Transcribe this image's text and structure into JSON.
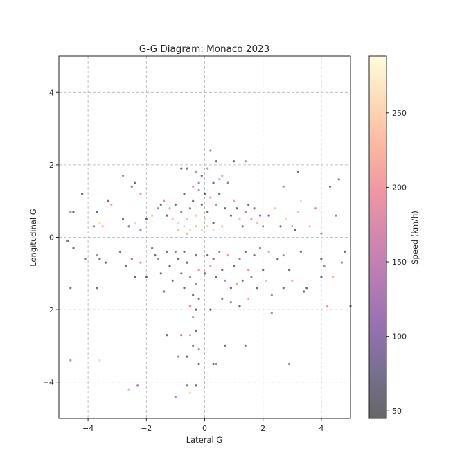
{
  "chart_data": {
    "type": "scatter",
    "title": "G-G Diagram: Monaco 2023",
    "xlabel": "Lateral G",
    "ylabel": "Longitudinal G",
    "xlim": [
      -5,
      5
    ],
    "ylim": [
      -5,
      5
    ],
    "xticks": [
      -4,
      -2,
      0,
      2,
      4
    ],
    "yticks": [
      -4,
      -2,
      0,
      2,
      4
    ],
    "xtick_labels": [
      "−4",
      "−2",
      "0",
      "2",
      "4"
    ],
    "ytick_labels": [
      "−4",
      "−2",
      "0",
      "2",
      "4"
    ],
    "grid": true,
    "colormap": "magma",
    "marker_alpha": 0.6,
    "colorbar": {
      "label": "Speed (km/h)",
      "range": [
        45,
        288
      ],
      "ticks": [
        50,
        100,
        150,
        200,
        250
      ],
      "tick_labels": [
        "50",
        "100",
        "150",
        "200",
        "250"
      ]
    },
    "points": [
      [
        -4.6,
        0.7,
        140
      ],
      [
        -4.5,
        0.7,
        60
      ],
      [
        -4.2,
        1.2,
        50
      ],
      [
        -3.8,
        0.3,
        80
      ],
      [
        -3.7,
        0.7,
        60
      ],
      [
        -3.6,
        0.4,
        250
      ],
      [
        -3.5,
        0.3,
        220
      ],
      [
        -3.3,
        1.0,
        60
      ],
      [
        -3.2,
        0.9,
        200
      ],
      [
        -4.7,
        -0.1,
        90
      ],
      [
        -4.5,
        -0.3,
        60
      ],
      [
        -4.1,
        -0.6,
        80
      ],
      [
        -3.7,
        -0.5,
        130
      ],
      [
        -3.6,
        -0.6,
        70
      ],
      [
        -3.4,
        -0.7,
        60
      ],
      [
        -3.7,
        -1.4,
        60
      ],
      [
        -4.6,
        -1.4,
        90
      ],
      [
        -4.6,
        -3.4,
        170
      ],
      [
        -3.6,
        -3.4,
        250
      ],
      [
        -2.6,
        -4.2,
        220
      ],
      [
        -2.3,
        -4.1,
        120
      ],
      [
        -2.8,
        0.5,
        60
      ],
      [
        -2.6,
        0.3,
        90
      ],
      [
        -2.4,
        0.4,
        250
      ],
      [
        -2.2,
        0.2,
        130
      ],
      [
        -2.0,
        0.5,
        60
      ],
      [
        -1.8,
        0.6,
        230
      ],
      [
        -1.6,
        0.8,
        140
      ],
      [
        -1.5,
        0.9,
        60
      ],
      [
        -1.4,
        1.0,
        180
      ],
      [
        -2.8,
        1.7,
        140
      ],
      [
        -2.4,
        1.5,
        60
      ],
      [
        -2.2,
        1.2,
        200
      ],
      [
        -2.5,
        1.4,
        90
      ],
      [
        -2.9,
        -0.4,
        70
      ],
      [
        -2.7,
        -0.8,
        60
      ],
      [
        -2.5,
        -0.6,
        130
      ],
      [
        -2.4,
        -1.1,
        50
      ],
      [
        -2.2,
        -0.7,
        180
      ],
      [
        -2.0,
        -1.1,
        60
      ],
      [
        -1.8,
        -0.3,
        100
      ],
      [
        -1.7,
        -0.5,
        60
      ],
      [
        -1.6,
        -0.6,
        140
      ],
      [
        -1.5,
        -1.0,
        60
      ],
      [
        -1.4,
        -1.5,
        90
      ],
      [
        -1.3,
        -0.4,
        70
      ],
      [
        -1.2,
        -0.8,
        50
      ],
      [
        -1.1,
        -1.2,
        60
      ],
      [
        -1.0,
        -0.4,
        120
      ],
      [
        -0.9,
        -0.6,
        60
      ],
      [
        -0.8,
        -1.0,
        80
      ],
      [
        -0.7,
        -0.4,
        60
      ],
      [
        -0.6,
        -0.7,
        50
      ],
      [
        -0.5,
        -1.1,
        140
      ],
      [
        -0.4,
        -1.6,
        60
      ],
      [
        -0.3,
        -0.5,
        70
      ],
      [
        -0.2,
        -0.9,
        180
      ],
      [
        -1.3,
        0.6,
        60
      ],
      [
        -1.2,
        0.8,
        200
      ],
      [
        -1.1,
        0.5,
        240
      ],
      [
        -1.0,
        0.9,
        60
      ],
      [
        -0.9,
        0.4,
        250
      ],
      [
        -0.8,
        0.7,
        130
      ],
      [
        -0.7,
        1.2,
        60
      ],
      [
        -0.6,
        0.5,
        230
      ],
      [
        -0.5,
        0.8,
        90
      ],
      [
        -0.4,
        1.0,
        60
      ],
      [
        -0.3,
        0.6,
        240
      ],
      [
        -0.2,
        1.3,
        140
      ],
      [
        -0.1,
        0.9,
        60
      ],
      [
        0.0,
        0.5,
        250
      ],
      [
        0.1,
        0.7,
        60
      ],
      [
        0.2,
        1.1,
        200
      ],
      [
        0.3,
        0.4,
        60
      ],
      [
        0.4,
        0.9,
        150
      ],
      [
        0.5,
        1.2,
        60
      ],
      [
        0.6,
        0.3,
        230
      ],
      [
        0.7,
        0.8,
        60
      ],
      [
        0.8,
        1.5,
        120
      ],
      [
        0.9,
        0.6,
        60
      ],
      [
        1.0,
        1.0,
        200
      ],
      [
        -0.9,
        0.2,
        240
      ],
      [
        -0.7,
        0.3,
        250
      ],
      [
        -0.5,
        0.2,
        260
      ],
      [
        -0.3,
        0.3,
        230
      ],
      [
        -0.1,
        0.2,
        250
      ],
      [
        0.1,
        0.3,
        240
      ],
      [
        0.3,
        0.2,
        260
      ],
      [
        -0.6,
        0.1,
        220
      ],
      [
        -0.8,
        1.9,
        60
      ],
      [
        -0.6,
        1.9,
        90
      ],
      [
        -0.3,
        1.8,
        150
      ],
      [
        -0.1,
        1.7,
        60
      ],
      [
        0.1,
        1.9,
        160
      ],
      [
        0.2,
        2.4,
        140
      ],
      [
        0.4,
        2.1,
        60
      ],
      [
        0.6,
        1.7,
        200
      ],
      [
        1.0,
        2.1,
        60
      ],
      [
        1.4,
        2.1,
        150
      ],
      [
        0.3,
        1.5,
        60
      ],
      [
        0.5,
        1.6,
        200
      ],
      [
        -0.2,
        1.5,
        140
      ],
      [
        -0.4,
        1.4,
        180
      ],
      [
        0.0,
        1.2,
        60
      ],
      [
        1.1,
        0.8,
        60
      ],
      [
        1.2,
        0.5,
        230
      ],
      [
        1.3,
        0.3,
        60
      ],
      [
        1.4,
        0.7,
        140
      ],
      [
        1.5,
        0.9,
        60
      ],
      [
        1.6,
        0.5,
        200
      ],
      [
        1.7,
        0.8,
        60
      ],
      [
        1.8,
        0.4,
        230
      ],
      [
        1.9,
        0.6,
        90
      ],
      [
        2.0,
        0.3,
        130
      ],
      [
        2.2,
        0.6,
        60
      ],
      [
        2.4,
        0.8,
        230
      ],
      [
        2.6,
        0.3,
        60
      ],
      [
        2.8,
        0.5,
        250
      ],
      [
        3.0,
        0.3,
        200
      ],
      [
        3.2,
        0.7,
        240
      ],
      [
        3.1,
        0.2,
        60
      ],
      [
        2.7,
        1.4,
        140
      ],
      [
        3.2,
        1.8,
        60
      ],
      [
        0.1,
        -0.5,
        60
      ],
      [
        0.3,
        -0.6,
        90
      ],
      [
        0.5,
        -0.4,
        140
      ],
      [
        0.6,
        -0.9,
        60
      ],
      [
        0.8,
        -0.5,
        200
      ],
      [
        1.0,
        -0.8,
        60
      ],
      [
        1.2,
        -0.6,
        130
      ],
      [
        1.4,
        -0.4,
        60
      ],
      [
        1.5,
        -0.9,
        180
      ],
      [
        1.7,
        -0.5,
        60
      ],
      [
        1.9,
        -0.3,
        130
      ],
      [
        2.0,
        -0.9,
        60
      ],
      [
        2.2,
        -0.4,
        200
      ],
      [
        2.5,
        -0.6,
        60
      ],
      [
        2.7,
        -0.5,
        150
      ],
      [
        2.9,
        -0.9,
        60
      ],
      [
        0.4,
        -1.1,
        60
      ],
      [
        0.7,
        -1.2,
        140
      ],
      [
        0.9,
        -1.4,
        60
      ],
      [
        1.1,
        -1.3,
        200
      ],
      [
        1.3,
        -1.2,
        60
      ],
      [
        1.6,
        -1.1,
        140
      ],
      [
        1.8,
        -1.4,
        60
      ],
      [
        2.1,
        -1.2,
        230
      ],
      [
        2.3,
        -1.6,
        140
      ],
      [
        2.7,
        -1.4,
        60
      ],
      [
        3.0,
        -1.2,
        200
      ],
      [
        3.4,
        -1.5,
        60
      ],
      [
        0.6,
        -1.7,
        60
      ],
      [
        0.9,
        -1.8,
        140
      ],
      [
        1.2,
        -1.9,
        60
      ],
      [
        1.5,
        -1.7,
        200
      ],
      [
        2.3,
        -2.1,
        130
      ],
      [
        0.7,
        -3.0,
        60
      ],
      [
        1.4,
        -3.0,
        90
      ],
      [
        0.3,
        -3.5,
        60
      ],
      [
        0.4,
        -3.5,
        140
      ],
      [
        2.9,
        -3.5,
        120
      ],
      [
        3.3,
        -0.4,
        60
      ],
      [
        -0.3,
        -2.0,
        60
      ],
      [
        -0.4,
        -2.2,
        140
      ],
      [
        -0.3,
        -2.6,
        60
      ],
      [
        -0.5,
        -2.7,
        200
      ],
      [
        -0.4,
        -3.0,
        60
      ],
      [
        -0.2,
        -3.1,
        150
      ],
      [
        -0.6,
        -3.3,
        60
      ],
      [
        -0.8,
        -2.7,
        130
      ],
      [
        -1.3,
        -2.7,
        60
      ],
      [
        -0.9,
        -3.3,
        140
      ],
      [
        -0.2,
        -3.5,
        60
      ],
      [
        -0.6,
        -4.1,
        90
      ],
      [
        -0.5,
        -4.3,
        250
      ],
      [
        -0.3,
        -4.1,
        60
      ],
      [
        -1.0,
        -4.4,
        140
      ],
      [
        -0.5,
        -1.9,
        180
      ],
      [
        -0.2,
        -1.7,
        60
      ],
      [
        0.2,
        -2.0,
        60
      ],
      [
        -0.7,
        -1.4,
        60
      ],
      [
        -0.3,
        -1.3,
        140
      ],
      [
        0.0,
        -1.0,
        60
      ],
      [
        0.2,
        -0.8,
        200
      ],
      [
        3.5,
        -1.4,
        60
      ],
      [
        3.8,
        0.8,
        180
      ],
      [
        4.0,
        -0.6,
        60
      ],
      [
        4.1,
        -0.8,
        140
      ],
      [
        4.0,
        -1.1,
        60
      ],
      [
        4.2,
        -1.9,
        200
      ],
      [
        4.4,
        -1.1,
        230
      ],
      [
        4.3,
        1.4,
        60
      ],
      [
        4.5,
        0.6,
        140
      ],
      [
        4.6,
        1.6,
        60
      ],
      [
        4.7,
        -0.7,
        140
      ],
      [
        4.8,
        -0.4,
        60
      ],
      [
        5.0,
        -1.9,
        60
      ],
      [
        4.0,
        0.1,
        150
      ],
      [
        3.6,
        0.3,
        230
      ],
      [
        3.3,
        1.0,
        250
      ]
    ]
  }
}
